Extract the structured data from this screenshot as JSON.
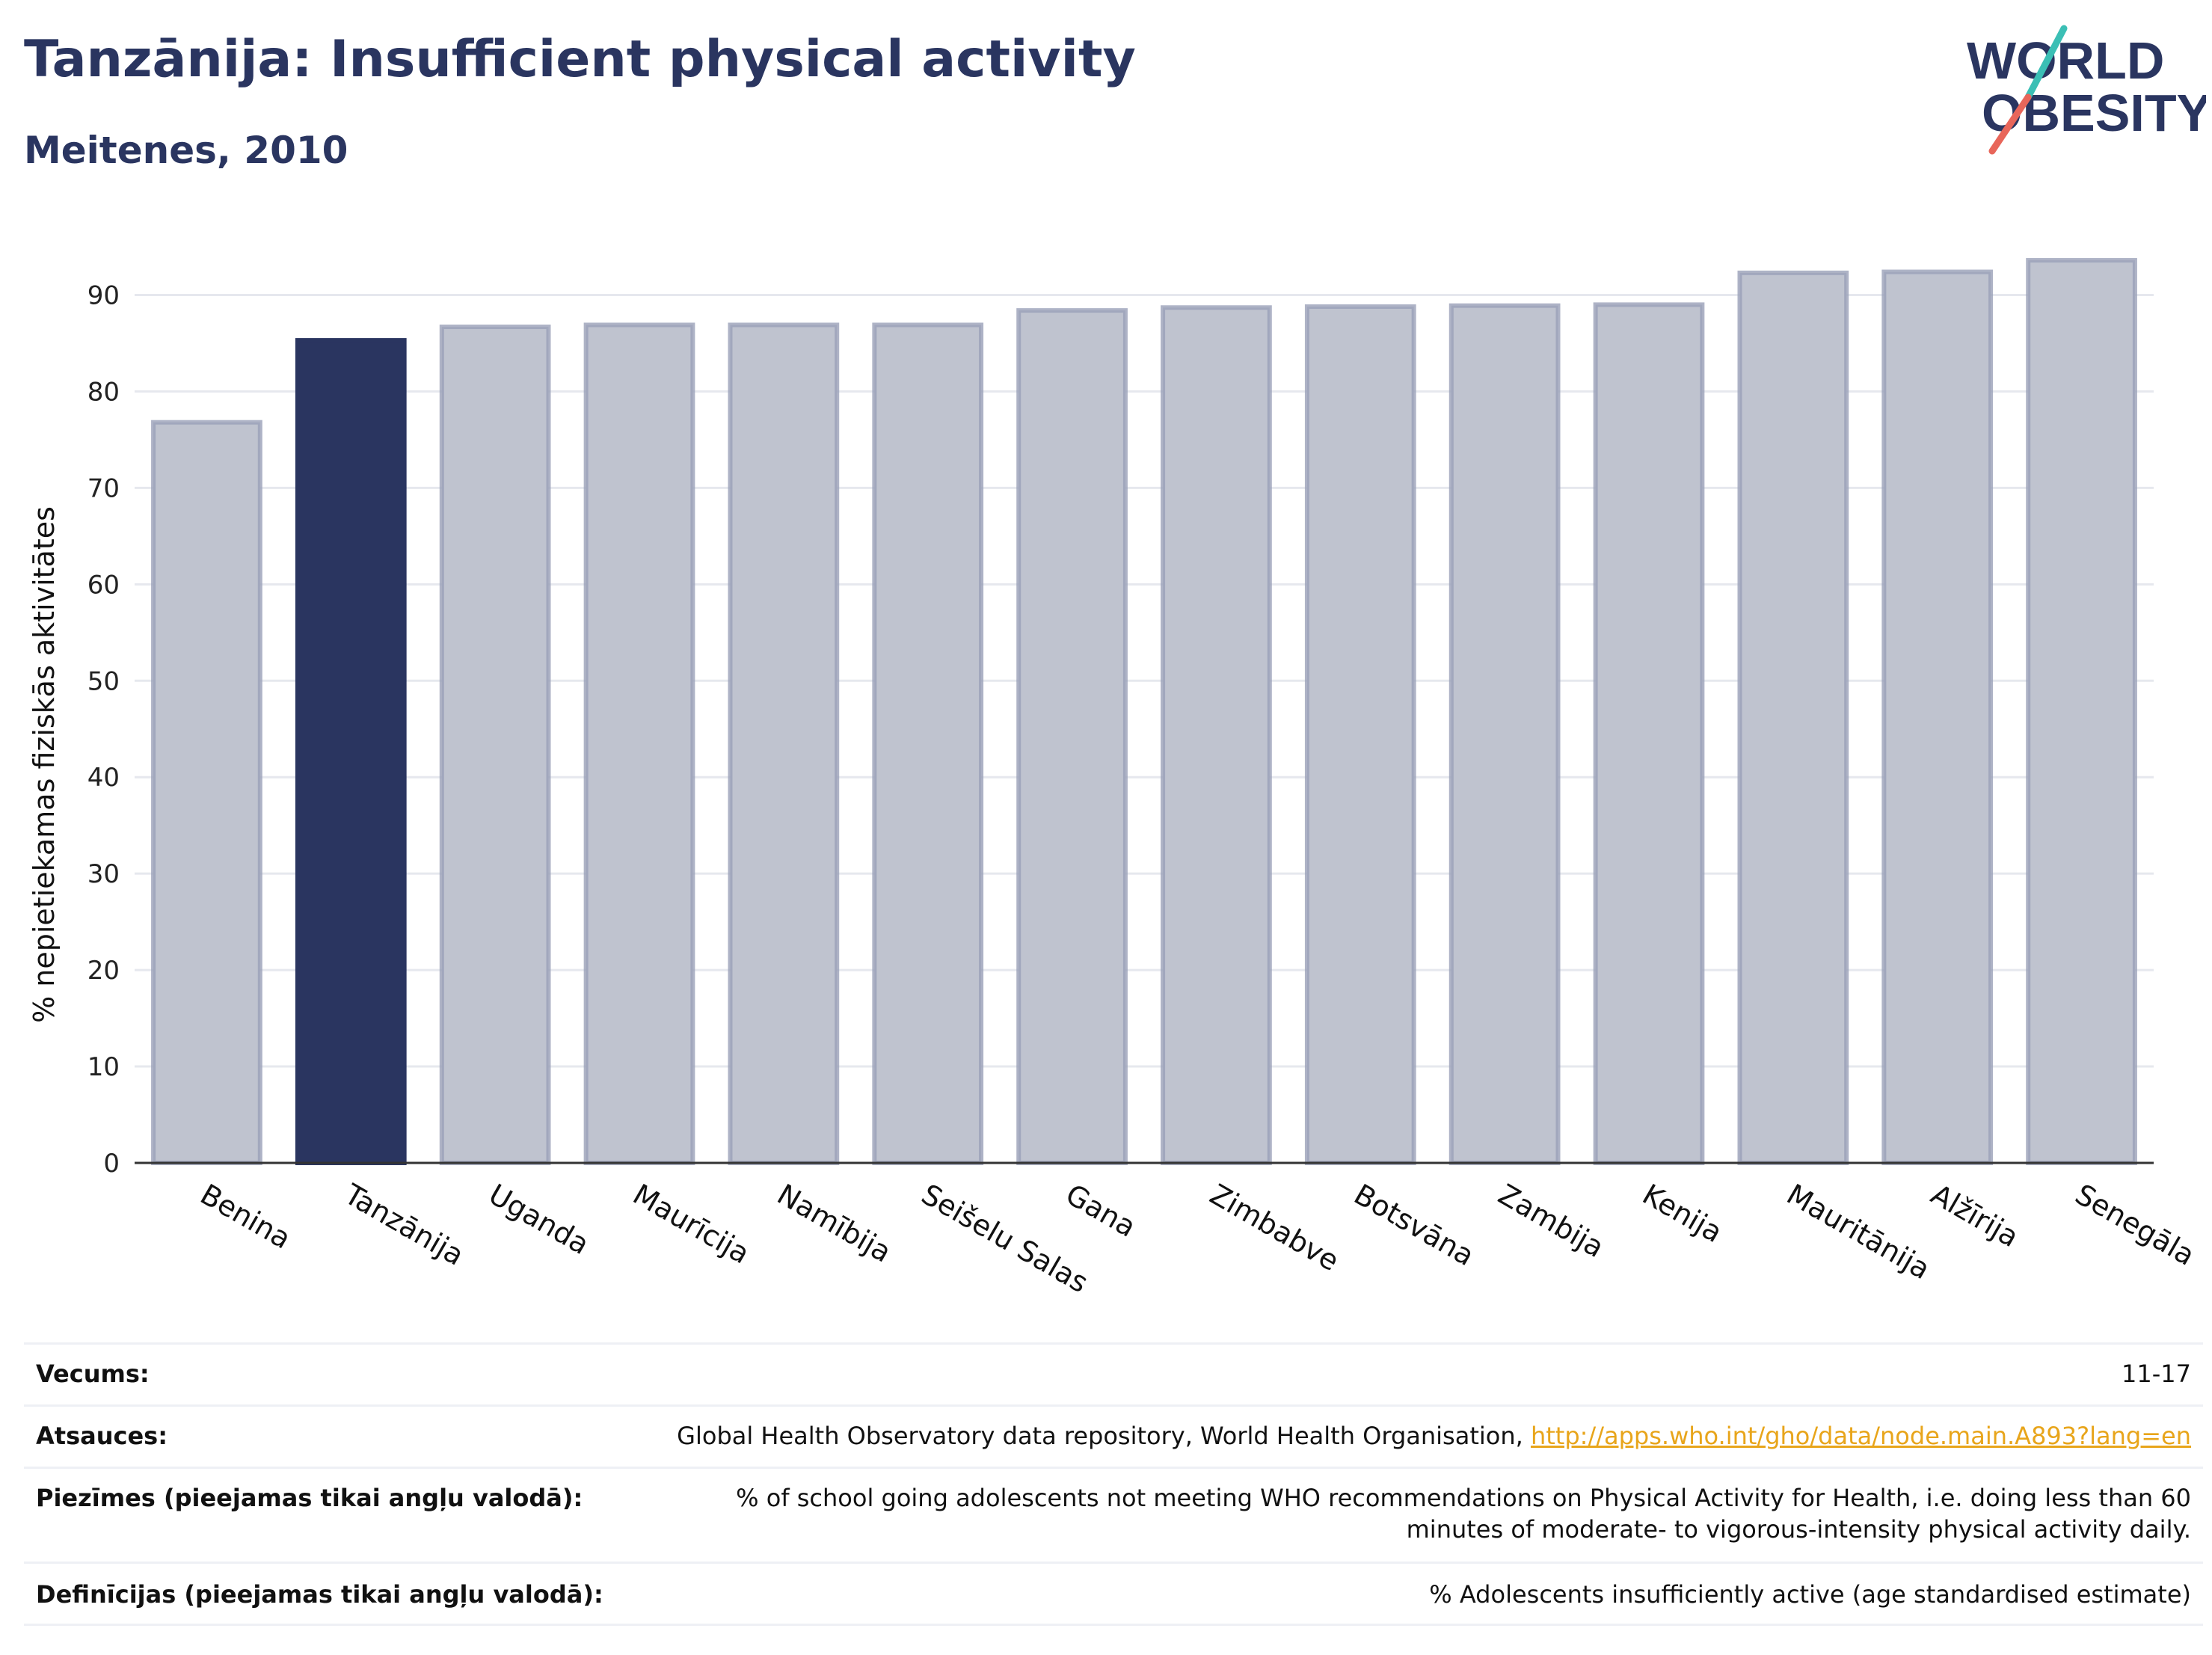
{
  "header": {
    "title": "Tanzānija: Insufficient physical activity",
    "subtitle": "Meitenes, 2010"
  },
  "logo": {
    "line1": "WORLD",
    "line2": "OBESITY",
    "accent_teal": "#3bbfb5",
    "accent_red": "#e8665a"
  },
  "chart_data": {
    "type": "bar",
    "ylabel": "% nepietiekamas fiziskās aktivitātes",
    "ylim": [
      0,
      95
    ],
    "yticks": [
      0,
      10,
      20,
      30,
      40,
      50,
      60,
      70,
      80,
      90
    ],
    "grid": true,
    "categories": [
      "Benina",
      "Tanzānija",
      "Uganda",
      "Maurīcija",
      "Namībija",
      "Seišelu Salas",
      "Gana",
      "Zimbabve",
      "Botsvāna",
      "Zambija",
      "Kenija",
      "Mauritānija",
      "Alžīrija",
      "Senegāla"
    ],
    "values": [
      76.8,
      85.3,
      86.7,
      86.9,
      86.9,
      86.9,
      88.4,
      88.7,
      88.8,
      88.9,
      89.0,
      92.3,
      92.4,
      93.6
    ],
    "highlight": "Tanzānija",
    "colors": {
      "bar": "#bfc3cf",
      "bar_border": "#9aa0b8",
      "highlight": "#2a3560",
      "grid": "#e6e8ee",
      "axis": "#333333"
    }
  },
  "meta": {
    "rows": [
      {
        "label": "Vecums:",
        "value": "11-17"
      },
      {
        "label": "Atsauces:",
        "value": "Global Health Observatory data repository, World Health Organisation, ",
        "link": "http://apps.who.int/gho/data/node.main.A893?lang=en"
      },
      {
        "label": "Piezīmes (pieejamas tikai angļu valodā):",
        "value": "% of school going adolescents not meeting WHO recommendations on Physical Activity for Health, i.e. doing less than 60 minutes of moderate- to vigorous-intensity physical activity daily."
      },
      {
        "label": "Definīcijas (pieejamas tikai angļu valodā):",
        "value": "% Adolescents insufficiently active (age standardised estimate)"
      }
    ]
  }
}
